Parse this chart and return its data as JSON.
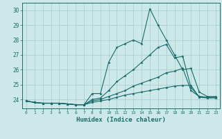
{
  "xlabel": "Humidex (Indice chaleur)",
  "ylabel": "",
  "bg_color": "#cce8e8",
  "grid_color": "#aacfcf",
  "line_color": "#1a6b6b",
  "xlim": [
    -0.5,
    23.5
  ],
  "ylim": [
    23.4,
    30.5
  ],
  "yticks": [
    24,
    25,
    26,
    27,
    28,
    29,
    30
  ],
  "xticks": [
    0,
    1,
    2,
    3,
    4,
    5,
    6,
    7,
    8,
    9,
    10,
    11,
    12,
    13,
    14,
    15,
    16,
    17,
    18,
    19,
    20,
    21,
    22,
    23
  ],
  "series": [
    [
      23.9,
      23.8,
      23.75,
      23.75,
      23.75,
      23.7,
      23.65,
      23.65,
      24.4,
      24.4,
      26.5,
      27.5,
      27.75,
      28.0,
      27.75,
      30.1,
      29.0,
      28.0,
      27.0,
      26.0,
      26.1,
      24.5,
      24.2,
      24.2
    ],
    [
      23.9,
      23.8,
      23.75,
      23.75,
      23.75,
      23.7,
      23.65,
      23.65,
      24.0,
      24.1,
      24.6,
      25.2,
      25.6,
      26.0,
      26.5,
      27.0,
      27.5,
      27.7,
      26.8,
      26.9,
      24.8,
      24.2,
      24.15,
      24.15
    ],
    [
      23.9,
      23.8,
      23.75,
      23.75,
      23.75,
      23.7,
      23.65,
      23.65,
      23.9,
      24.0,
      24.2,
      24.4,
      24.6,
      24.9,
      25.1,
      25.3,
      25.5,
      25.8,
      25.9,
      26.1,
      24.6,
      24.2,
      24.15,
      24.15
    ],
    [
      23.9,
      23.8,
      23.75,
      23.75,
      23.75,
      23.7,
      23.65,
      23.65,
      23.8,
      23.9,
      24.0,
      24.15,
      24.3,
      24.4,
      24.5,
      24.6,
      24.7,
      24.8,
      24.9,
      24.95,
      24.95,
      24.15,
      24.1,
      24.1
    ]
  ]
}
